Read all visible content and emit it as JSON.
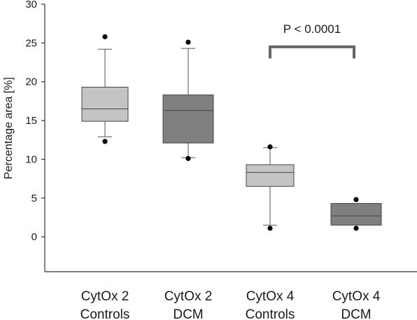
{
  "chart_data": {
    "type": "box",
    "title": "",
    "xlabel": "",
    "ylabel": "Percentage area [%]",
    "ylim": [
      -4.5,
      30
    ],
    "yticks": [
      0,
      5,
      10,
      15,
      20,
      25,
      30
    ],
    "grid": false,
    "categories": [
      {
        "line1": "CytOx 2",
        "line2": "Controls"
      },
      {
        "line1": "CytOx 2",
        "line2": "DCM"
      },
      {
        "line1": "CytOx 4",
        "line2": "Controls"
      },
      {
        "line1": "CytOx 4",
        "line2": "DCM"
      }
    ],
    "boxes": [
      {
        "whisker_low": 12.9,
        "q1": 14.9,
        "median": 16.5,
        "q3": 19.3,
        "whisker_high": 24.2,
        "outliers": [
          12.3,
          25.8
        ],
        "color": "#c4c4c4"
      },
      {
        "whisker_low": 10.2,
        "q1": 12.1,
        "median": 16.3,
        "q3": 18.3,
        "whisker_high": 24.3,
        "outliers": [
          10.1,
          25.1
        ],
        "color": "#7f7f7f"
      },
      {
        "whisker_low": 1.5,
        "q1": 6.5,
        "median": 8.3,
        "q3": 9.3,
        "whisker_high": 11.5,
        "outliers": [
          1.1,
          11.6
        ],
        "color": "#c4c4c4"
      },
      {
        "whisker_low": 1.5,
        "q1": 1.5,
        "median": 2.7,
        "q3": 4.3,
        "whisker_high": 4.3,
        "outliers": [
          1.1,
          4.8
        ],
        "color": "#7f7f7f"
      }
    ],
    "annotation": {
      "text": "P < 0.0001",
      "between": [
        2,
        3
      ],
      "bracket_y": 24.5,
      "bracket_drop": 1.5,
      "color": "#666666"
    }
  }
}
